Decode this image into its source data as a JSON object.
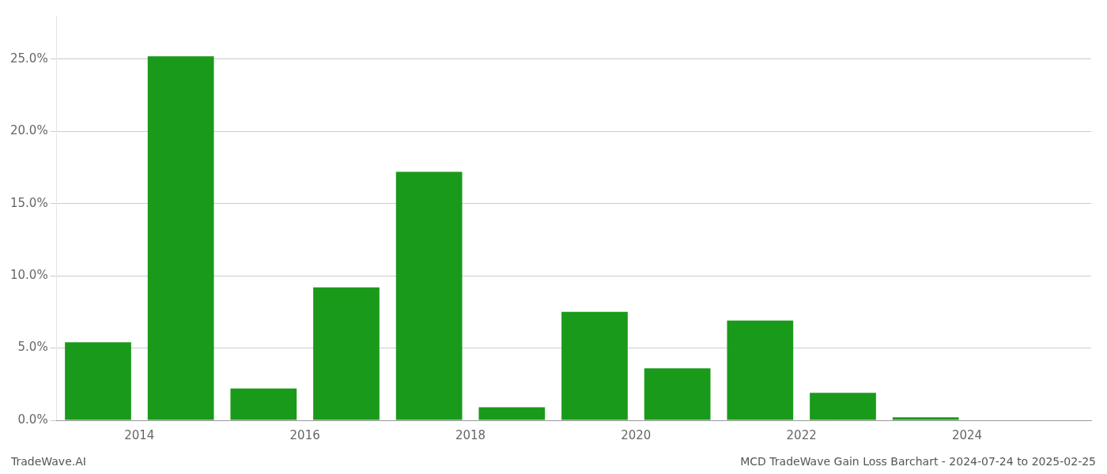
{
  "chart_data": {
    "type": "bar",
    "x": [
      2013.5,
      2014.5,
      2015.5,
      2016.5,
      2017.5,
      2018.5,
      2019.5,
      2020.5,
      2021.5,
      2022.5,
      2023.5,
      2024.5
    ],
    "values": [
      0.054,
      0.252,
      0.022,
      0.092,
      0.172,
      0.009,
      0.075,
      0.036,
      0.069,
      0.019,
      0.002,
      0.0
    ],
    "color": "#1a9a1a",
    "xlim": [
      2013.0,
      2025.5
    ],
    "xticks": [
      2014,
      2016,
      2018,
      2020,
      2022,
      2024
    ],
    "ylim": [
      0,
      0.28
    ],
    "yticks": [
      {
        "value": 0.0,
        "label": "0.0%"
      },
      {
        "value": 0.05,
        "label": "5.0%"
      },
      {
        "value": 0.1,
        "label": "10.0%"
      },
      {
        "value": 0.15,
        "label": "15.0%"
      },
      {
        "value": 0.2,
        "label": "20.0%"
      },
      {
        "value": 0.25,
        "label": "25.0%"
      }
    ],
    "grid": "y",
    "annotations": [
      "TradeWave.AI",
      "MCD TradeWave Gain Loss Barchart - 2024-07-24 to 2025-02-25"
    ]
  }
}
